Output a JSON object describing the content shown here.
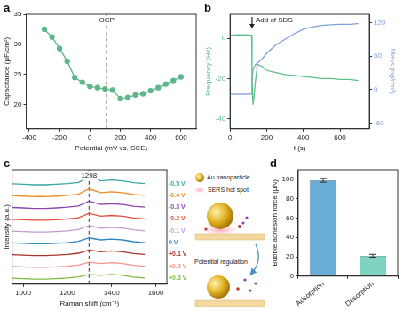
{
  "chart_data": [
    {
      "panel": "a",
      "type": "line",
      "xlabel": "Potential (mV vs. SCE)",
      "ylabel": "Capacitance (μF/cm²)",
      "x": [
        -300,
        -250,
        -200,
        -150,
        -100,
        -50,
        0,
        50,
        100,
        150,
        200,
        250,
        300,
        350,
        400,
        450,
        500,
        550,
        600
      ],
      "values": [
        32.5,
        31.2,
        29.3,
        27.2,
        24.5,
        23.7,
        23.0,
        22.8,
        22.6,
        22.4,
        21.0,
        21.2,
        21.6,
        21.8,
        22.3,
        22.8,
        23.4,
        24.0,
        24.6
      ],
      "color": "#5cb88a",
      "marker": "circle",
      "xlim": [
        -420,
        700
      ],
      "xticks": [
        -400,
        -200,
        0,
        200,
        400,
        600
      ],
      "ylim": [
        16,
        35
      ],
      "yticks": [
        20,
        25,
        30,
        35
      ],
      "grid": false,
      "annotations": [
        {
          "text": "OCP",
          "x": 110
        }
      ]
    },
    {
      "panel": "b",
      "type": "line",
      "xlabel": "t (s)",
      "ylabel": "Frequency (Hz)",
      "y2label": "Mass (ng/cm²)",
      "x": [
        0,
        50,
        100,
        118,
        120,
        125,
        130,
        140,
        150,
        175,
        200,
        250,
        300,
        350,
        400,
        450,
        500,
        550,
        600,
        650,
        700
      ],
      "series": [
        {
          "color": "#5cbf8a",
          "values": [
            1.5,
            1.8,
            1.6,
            1.5,
            -20,
            -33,
            -30,
            -20,
            -13,
            -14,
            -16,
            -17,
            -18,
            -18.5,
            -19,
            -19.5,
            -20,
            -20,
            -20.5,
            -20.5,
            -21
          ]
        },
        {
          "color": "#7e9fd6",
          "axis": "y2",
          "values": [
            -8,
            -8.5,
            -8,
            -8,
            20,
            35,
            40,
            45,
            48,
            55,
            65,
            80,
            90,
            100,
            108,
            112,
            115,
            116,
            117,
            117,
            118
          ]
        }
      ],
      "xlim": [
        0,
        760
      ],
      "xticks": [
        0,
        200,
        400,
        600
      ],
      "ylim": [
        -45,
        12
      ],
      "yticks": [
        -40,
        -20,
        0
      ],
      "y2lim": [
        -70,
        135
      ],
      "y2ticks": [
        -60,
        0,
        60,
        120
      ],
      "grid": false,
      "annotations": [
        {
          "text": "Add of SDS",
          "x": 120
        }
      ]
    },
    {
      "panel": "c",
      "type": "line",
      "xlabel": "Raman shift (cm⁻¹)",
      "ylabel": "Intensity (a.u.)",
      "x": [
        950,
        1000,
        1050,
        1100,
        1150,
        1200,
        1250,
        1298,
        1350,
        1400,
        1450,
        1500,
        1550
      ],
      "series": [
        {
          "name": "-0.5 V",
          "color": "#3aa6a0",
          "values": [
            9.8,
            9.76,
            9.72,
            9.72,
            9.76,
            9.82,
            9.92,
            10.42,
            10.05,
            10.12,
            10.05,
            9.9,
            9.82
          ]
        },
        {
          "name": "-0.4 V",
          "color": "#f08a24",
          "values": [
            8.8,
            8.76,
            8.72,
            8.72,
            8.76,
            8.82,
            8.92,
            9.38,
            9.05,
            9.12,
            9.05,
            8.9,
            8.82
          ]
        },
        {
          "name": "-0.3 V",
          "color": "#8e44ad",
          "values": [
            7.8,
            7.76,
            7.72,
            7.72,
            7.76,
            7.82,
            7.92,
            8.34,
            8.05,
            8.12,
            8.05,
            7.9,
            7.82
          ]
        },
        {
          "name": "-0.2 V",
          "color": "#e74c3c",
          "values": [
            6.8,
            6.76,
            6.72,
            6.72,
            6.76,
            6.82,
            6.92,
            7.3,
            7.05,
            7.12,
            7.05,
            6.9,
            6.82
          ]
        },
        {
          "name": "-0.1 V",
          "color": "#c39bd3",
          "values": [
            5.8,
            5.76,
            5.72,
            5.72,
            5.76,
            5.82,
            5.92,
            6.26,
            6.05,
            6.12,
            6.05,
            5.9,
            5.82
          ]
        },
        {
          "name": "0 V",
          "color": "#2e86c1",
          "values": [
            4.8,
            4.76,
            4.72,
            4.72,
            4.76,
            4.82,
            4.92,
            5.22,
            5.05,
            5.12,
            5.05,
            4.9,
            4.82
          ]
        },
        {
          "name": "+0.1 V",
          "color": "#a93226",
          "values": [
            3.8,
            3.76,
            3.72,
            3.72,
            3.76,
            3.82,
            3.92,
            4.19,
            4.05,
            4.12,
            4.05,
            3.9,
            3.82
          ]
        },
        {
          "name": "+0.2 V",
          "color": "#f1948a",
          "values": [
            2.8,
            2.76,
            2.72,
            2.72,
            2.76,
            2.82,
            2.92,
            3.16,
            3.05,
            3.12,
            3.05,
            2.9,
            2.82
          ]
        },
        {
          "name": "+0.3 V",
          "color": "#7dbb42",
          "values": [
            1.8,
            1.76,
            1.72,
            1.72,
            1.76,
            1.82,
            1.92,
            2.12,
            2.05,
            2.12,
            2.05,
            1.9,
            1.82
          ]
        }
      ],
      "xlim": [
        950,
        1650
      ],
      "xticks": [
        1000,
        1200,
        1400,
        1600
      ],
      "ylim": [
        1.3,
        11
      ],
      "tick_labels": "x",
      "grid": false,
      "annotations": [
        {
          "text": "1298",
          "x": 1298
        }
      ]
    },
    {
      "panel": "d",
      "type": "bar",
      "ylabel": "Bubble adhesion force (μN)",
      "categories": [
        "Adsorption",
        "Desorption"
      ],
      "values": [
        99,
        21
      ],
      "errors": [
        2,
        1.5
      ],
      "colors": [
        "#6aaed6",
        "#7fd4c1"
      ],
      "ylim": [
        0,
        110
      ],
      "yticks": [
        0,
        20,
        40,
        60,
        80,
        100
      ],
      "grid": false
    }
  ],
  "schematic": {
    "au_label": "Au nanoparticle",
    "hotspot_label": "SERS hot spot",
    "arrow_label": "Potential regulation"
  }
}
